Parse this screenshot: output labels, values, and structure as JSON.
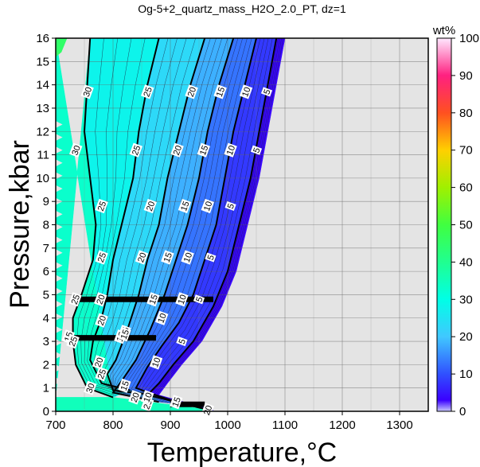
{
  "chart_data": {
    "type": "heatmap",
    "title": "Og-5+2_quartz_mass_H2O_2.0_PT, dz=1",
    "xlabel": "Temperature,°C",
    "ylabel": "Pressure,kbar",
    "xlim": [
      700,
      1350
    ],
    "ylim": [
      0,
      16
    ],
    "xticks": [
      700,
      800,
      900,
      1000,
      1100,
      1200,
      1300
    ],
    "yticks": [
      0,
      1,
      2,
      3,
      4,
      5,
      6,
      7,
      8,
      9,
      10,
      11,
      12,
      13,
      14,
      15,
      16
    ],
    "grid": true,
    "colorbar": {
      "label": "wt%",
      "range": [
        0,
        100
      ],
      "ticks": [
        0,
        10,
        20,
        30,
        40,
        50,
        60,
        70,
        80,
        90,
        100
      ],
      "stops": [
        {
          "v": 0,
          "color": "#c8c8ff"
        },
        {
          "v": 3,
          "color": "#3a00ff"
        },
        {
          "v": 10,
          "color": "#3050ff"
        },
        {
          "v": 20,
          "color": "#40c8ff"
        },
        {
          "v": 30,
          "color": "#00ffe6"
        },
        {
          "v": 40,
          "color": "#20ff90"
        },
        {
          "v": 50,
          "color": "#40ff40"
        },
        {
          "v": 60,
          "color": "#a0f000"
        },
        {
          "v": 70,
          "color": "#ffd000"
        },
        {
          "v": 80,
          "color": "#ff5020"
        },
        {
          "v": 90,
          "color": "#ff2080"
        },
        {
          "v": 100,
          "color": "#ffe8ff"
        }
      ]
    },
    "nodata_color": "#e4e4e4",
    "series": [
      {
        "name": "5",
        "points": [
          [
            1085,
            16
          ],
          [
            1070,
            14
          ],
          [
            1055,
            12
          ],
          [
            1040,
            10
          ],
          [
            1020,
            8
          ],
          [
            1000,
            6
          ],
          [
            975,
            4.5
          ],
          [
            940,
            3
          ],
          [
            905,
            2
          ],
          [
            880,
            1.2
          ],
          [
            860,
            0.7
          ],
          [
            960,
            0.1
          ]
        ]
      },
      {
        "name": "10",
        "points": [
          [
            1050,
            16
          ],
          [
            1030,
            14
          ],
          [
            1010,
            12
          ],
          [
            995,
            10
          ],
          [
            980,
            8
          ],
          [
            960,
            6.5
          ],
          [
            940,
            5
          ],
          [
            915,
            3.8
          ],
          [
            885,
            2.8
          ],
          [
            860,
            1.9
          ],
          [
            840,
            1.0
          ],
          [
            920,
            0.3
          ]
        ]
      },
      {
        "name": "15",
        "points": [
          [
            1010,
            16
          ],
          [
            985,
            14
          ],
          [
            965,
            12
          ],
          [
            950,
            10
          ],
          [
            930,
            8
          ],
          [
            910,
            6.5
          ],
          [
            890,
            5
          ],
          [
            865,
            3.5
          ],
          [
            840,
            2.2
          ],
          [
            815,
            1.3
          ],
          [
            800,
            0.8
          ],
          [
            880,
            0.4
          ]
        ]
      },
      {
        "name": "20",
        "points": [
          [
            960,
            16
          ],
          [
            935,
            14
          ],
          [
            915,
            12
          ],
          [
            895,
            10
          ],
          [
            880,
            8
          ],
          [
            860,
            6.5
          ],
          [
            845,
            5
          ],
          [
            825,
            3.5
          ],
          [
            805,
            2.2
          ],
          [
            790,
            1.6
          ],
          [
            800,
            0.9
          ],
          [
            870,
            0.7
          ]
        ]
      },
      {
        "name": "25",
        "points": [
          [
            880,
            16
          ],
          [
            860,
            14
          ],
          [
            845,
            12
          ],
          [
            835,
            10
          ],
          [
            815,
            8
          ],
          [
            800,
            6.5
          ],
          [
            790,
            5
          ],
          [
            780,
            4
          ],
          [
            765,
            3
          ],
          [
            760,
            2.2
          ],
          [
            780,
            1.2
          ],
          [
            830,
            0.9
          ]
        ]
      },
      {
        "name": "30",
        "points": [
          [
            760,
            16
          ],
          [
            755,
            14
          ],
          [
            750,
            12
          ],
          [
            760,
            10
          ],
          [
            770,
            8
          ],
          [
            765,
            6.5
          ],
          [
            745,
            5
          ],
          [
            730,
            4
          ],
          [
            730,
            3
          ],
          [
            735,
            2
          ],
          [
            755,
            1
          ],
          [
            800,
            0.6
          ]
        ]
      }
    ],
    "contour_labels": [
      {
        "text": "30",
        "x": 755,
        "y": 13.7
      },
      {
        "text": "25",
        "x": 860,
        "y": 13.7
      },
      {
        "text": "20",
        "x": 937,
        "y": 13.7
      },
      {
        "text": "15",
        "x": 987,
        "y": 13.7
      },
      {
        "text": "10",
        "x": 1032,
        "y": 13.7
      },
      {
        "text": "5",
        "x": 1068,
        "y": 13.7
      },
      {
        "text": "30",
        "x": 735,
        "y": 11.2
      },
      {
        "text": "25",
        "x": 840,
        "y": 11.2
      },
      {
        "text": "20",
        "x": 912,
        "y": 11.2
      },
      {
        "text": "15",
        "x": 958,
        "y": 11.2
      },
      {
        "text": "10",
        "x": 1005,
        "y": 11.2
      },
      {
        "text": "5",
        "x": 1050,
        "y": 11.2
      },
      {
        "text": "25",
        "x": 780,
        "y": 8.8
      },
      {
        "text": "20",
        "x": 865,
        "y": 8.8
      },
      {
        "text": "15",
        "x": 925,
        "y": 8.8
      },
      {
        "text": "10",
        "x": 965,
        "y": 8.8
      },
      {
        "text": "5",
        "x": 1005,
        "y": 8.8
      },
      {
        "text": "25",
        "x": 780,
        "y": 6.6
      },
      {
        "text": "20",
        "x": 850,
        "y": 6.6
      },
      {
        "text": "15",
        "x": 895,
        "y": 6.6
      },
      {
        "text": "10",
        "x": 930,
        "y": 6.6
      },
      {
        "text": "5",
        "x": 970,
        "y": 6.6
      },
      {
        "text": "25",
        "x": 734,
        "y": 4.8
      },
      {
        "text": "20",
        "x": 778,
        "y": 4.8
      },
      {
        "text": "15",
        "x": 870,
        "y": 4.8
      },
      {
        "text": "10",
        "x": 920,
        "y": 4.8
      },
      {
        "text": "5",
        "x": 950,
        "y": 4.8
      },
      {
        "text": "20",
        "x": 780,
        "y": 3.9
      },
      {
        "text": "15",
        "x": 820,
        "y": 3.4
      },
      {
        "text": "10",
        "x": 885,
        "y": 4.0
      },
      {
        "text": "5",
        "x": 920,
        "y": 3.0
      },
      {
        "text": "15",
        "x": 722,
        "y": 3.2
      },
      {
        "text": "25",
        "x": 730,
        "y": 3.0
      },
      {
        "text": "18",
        "x": 813,
        "y": 3.2
      },
      {
        "text": "15",
        "x": 820,
        "y": 3.3
      },
      {
        "text": "10",
        "x": 875,
        "y": 2.1
      },
      {
        "text": "20",
        "x": 775,
        "y": 2.1
      },
      {
        "text": "25",
        "x": 780,
        "y": 1.6
      },
      {
        "text": "30",
        "x": 760,
        "y": 1.0
      },
      {
        "text": "15",
        "x": 820,
        "y": 1.1
      },
      {
        "text": "20",
        "x": 838,
        "y": 0.6
      },
      {
        "text": "25",
        "x": 860,
        "y": 0.3
      },
      {
        "text": "10",
        "x": 860,
        "y": 0.6
      },
      {
        "text": "15",
        "x": 910,
        "y": 0.4
      },
      {
        "text": "20",
        "x": 965,
        "y": 0.05
      }
    ],
    "thick_bands": [
      {
        "y": 4.8,
        "x0": 728,
        "x1": 975
      },
      {
        "y": 3.15,
        "x0": 722,
        "x1": 875
      },
      {
        "y": 0.3,
        "x0": 900,
        "x1": 960
      }
    ]
  }
}
